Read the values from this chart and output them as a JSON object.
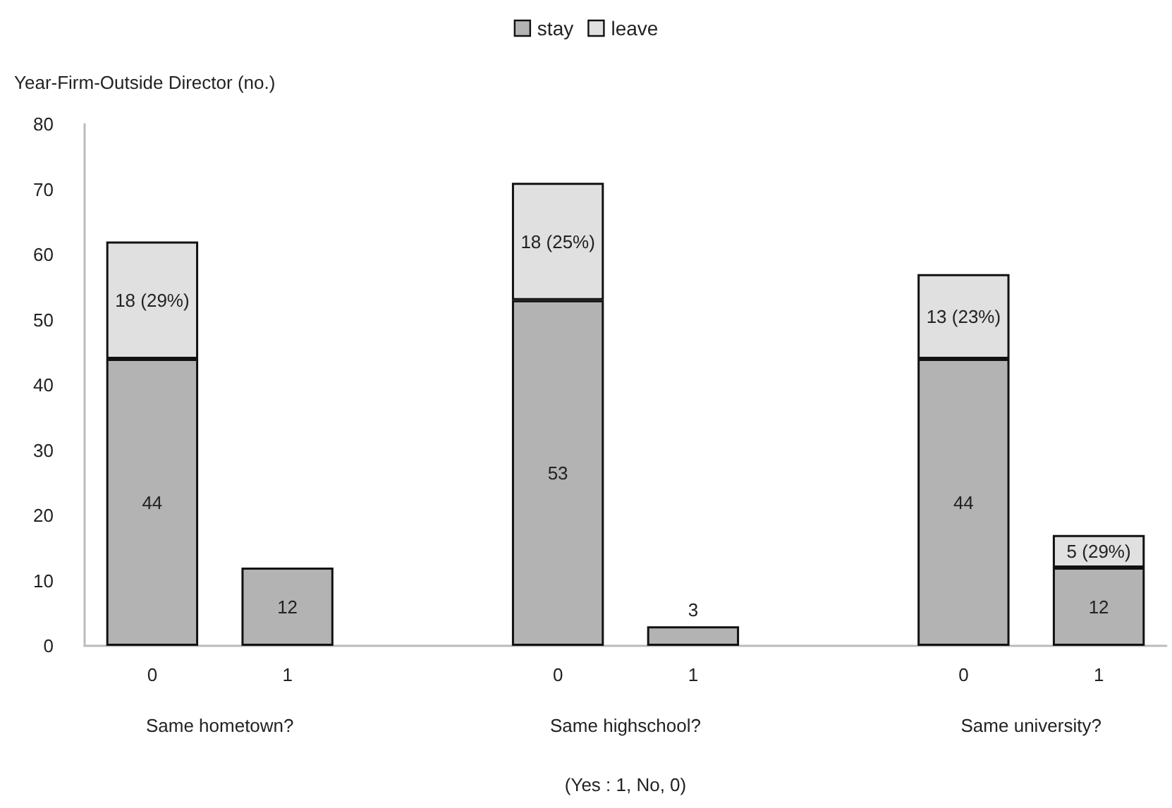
{
  "chart_data": {
    "type": "bar",
    "stacked": true,
    "ylabel": "Year-Firm-Outside Director (no.)",
    "xlabel": "(Yes : 1, No, 0)",
    "annotations": [
      "Same hometown?",
      "Same highschool?",
      "Same university?"
    ],
    "categories": [
      "0",
      "1",
      null,
      "0",
      "1",
      null,
      "0",
      "1"
    ],
    "series": [
      {
        "name": "stay",
        "color": "#b3b3b3",
        "values": [
          44,
          12,
          null,
          53,
          3,
          null,
          44,
          12
        ],
        "value_labels": [
          "44",
          "12",
          null,
          "53",
          "3",
          null,
          "44",
          "12"
        ]
      },
      {
        "name": "leave",
        "color": "#e0e0e0",
        "values": [
          18,
          null,
          null,
          18,
          null,
          null,
          13,
          5
        ],
        "value_labels": [
          "18 (29%)",
          null,
          null,
          "18 (25%)",
          null,
          null,
          "13 (23%)",
          "5 (29%)"
        ]
      }
    ],
    "ylim": [
      0,
      80
    ],
    "yticks": [
      0,
      10,
      20,
      30,
      40,
      50,
      60,
      70,
      80
    ],
    "grid": false,
    "legend": "top"
  }
}
